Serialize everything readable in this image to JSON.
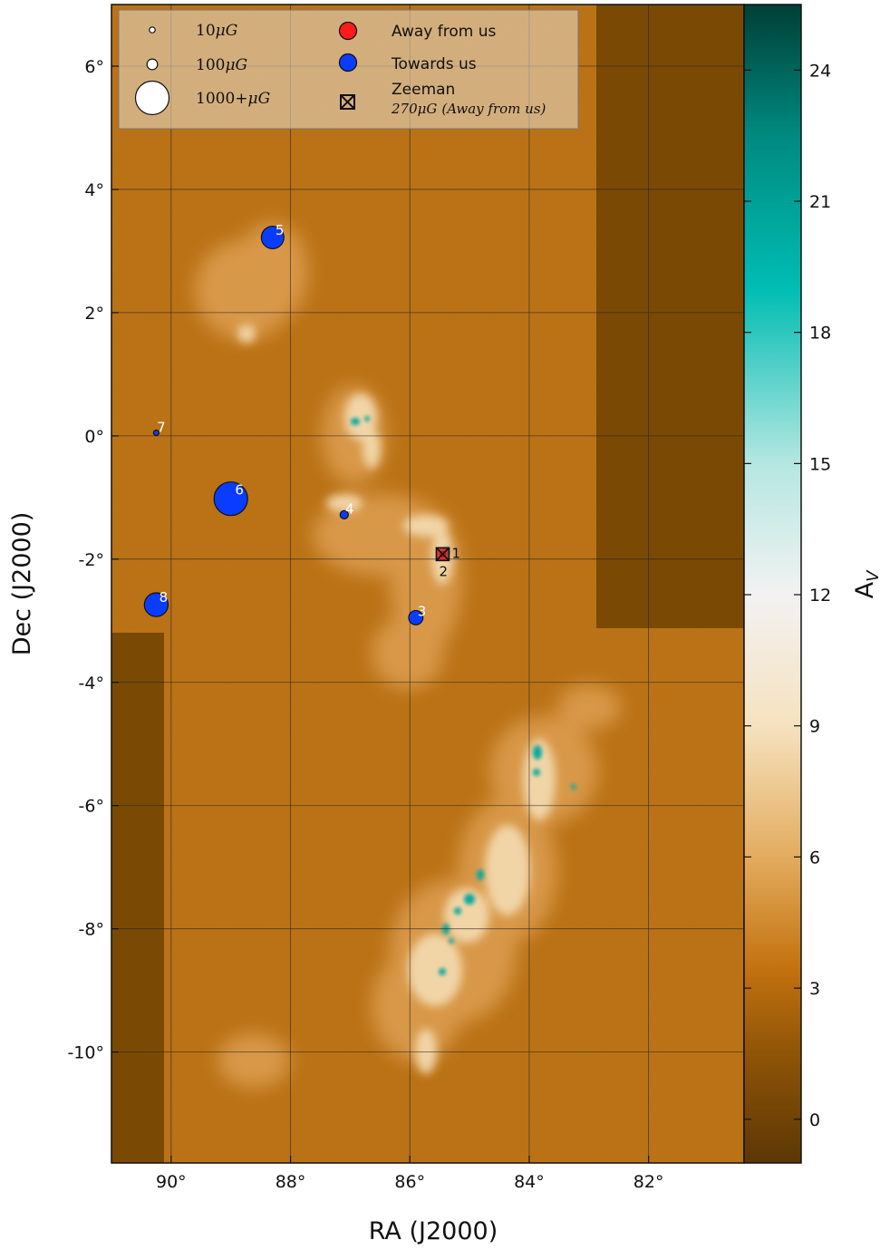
{
  "chart_data": {
    "type": "scatter",
    "title": "",
    "xlabel": "RA (J2000)",
    "ylabel": "Dec (J2000)",
    "xlim": [
      91.0,
      80.4
    ],
    "ylim": [
      -11.8,
      7.0
    ],
    "x_ticks": [
      {
        "value": 90,
        "label": "90°"
      },
      {
        "value": 88,
        "label": "88°"
      },
      {
        "value": 86,
        "label": "86°"
      },
      {
        "value": 84,
        "label": "84°"
      },
      {
        "value": 82,
        "label": "82°"
      }
    ],
    "y_ticks": [
      {
        "value": 6,
        "label": "6°"
      },
      {
        "value": 4,
        "label": "4°"
      },
      {
        "value": 2,
        "label": "2°"
      },
      {
        "value": 0,
        "label": "0°"
      },
      {
        "value": -2,
        "label": "-2°"
      },
      {
        "value": -4,
        "label": "-4°"
      },
      {
        "value": -6,
        "label": "-6°"
      },
      {
        "value": -8,
        "label": "-8°"
      },
      {
        "value": -10,
        "label": "-10°"
      }
    ],
    "grid": true,
    "background_image": "extinction map A_V (Orion molecular clouds)",
    "colorbar": {
      "label": "A",
      "label_sub": "V",
      "range": [
        -1.0,
        25.5
      ],
      "ticks": [
        {
          "value": 0,
          "label": "0"
        },
        {
          "value": 3,
          "label": "3"
        },
        {
          "value": 6,
          "label": "6"
        },
        {
          "value": 9,
          "label": "9"
        },
        {
          "value": 12,
          "label": "12"
        },
        {
          "value": 15,
          "label": "15"
        },
        {
          "value": 18,
          "label": "18"
        },
        {
          "value": 21,
          "label": "21"
        },
        {
          "value": 24,
          "label": "24"
        }
      ],
      "colors": [
        {
          "value": -1.0,
          "color": "#5c3706"
        },
        {
          "value": 1.5,
          "color": "#8f5407"
        },
        {
          "value": 3.5,
          "color": "#c47310"
        },
        {
          "value": 6.0,
          "color": "#e3ac5f"
        },
        {
          "value": 9.0,
          "color": "#f6e2bf"
        },
        {
          "value": 12.0,
          "color": "#f2f2f2"
        },
        {
          "value": 15.0,
          "color": "#b5e7e1"
        },
        {
          "value": 19.0,
          "color": "#00bdb3"
        },
        {
          "value": 22.5,
          "color": "#008a80"
        },
        {
          "value": 25.5,
          "color": "#003f36"
        }
      ]
    },
    "series": [
      {
        "name": "Towards us",
        "color": "#0a3cff",
        "points": [
          {
            "id": "3",
            "ra": 85.9,
            "dec": -2.95,
            "b_uG": 180
          },
          {
            "id": "4",
            "ra": 87.1,
            "dec": -1.28,
            "b_uG": 60
          },
          {
            "id": "5",
            "ra": 88.3,
            "dec": 3.22,
            "b_uG": 450
          },
          {
            "id": "6",
            "ra": 89.0,
            "dec": -1.02,
            "b_uG": 1000
          },
          {
            "id": "7",
            "ra": 90.25,
            "dec": 0.05,
            "b_uG": 20
          },
          {
            "id": "8",
            "ra": 90.25,
            "dec": -2.74,
            "b_uG": 500
          }
        ]
      },
      {
        "name": "Away from us",
        "color": "#ff1a1a",
        "points": [
          {
            "id": "2",
            "ra": 85.45,
            "dec": -1.92,
            "b_uG": 15
          }
        ]
      },
      {
        "name": "Zeeman",
        "color": "#cc1a1a",
        "points": [
          {
            "id": "1",
            "ra": 85.45,
            "dec": -1.92,
            "b_uG": 270
          }
        ]
      }
    ],
    "legend": {
      "placement": "top-left",
      "size_entries": [
        {
          "label": "10",
          "unit": "μG",
          "b_uG": 10
        },
        {
          "label": "100",
          "unit": "μG",
          "b_uG": 100
        },
        {
          "label": "1000+",
          "unit": "μG",
          "b_uG": 1000
        }
      ],
      "color_entries": [
        {
          "label": "Away from us",
          "color": "#ff1a1a"
        },
        {
          "label": "Towards us",
          "color": "#0a3cff"
        }
      ],
      "zeeman": {
        "label": "Zeeman",
        "sublabel_num": "270",
        "sublabel_unit": "μG",
        "sublabel_rest": "(Away from us)"
      }
    }
  }
}
